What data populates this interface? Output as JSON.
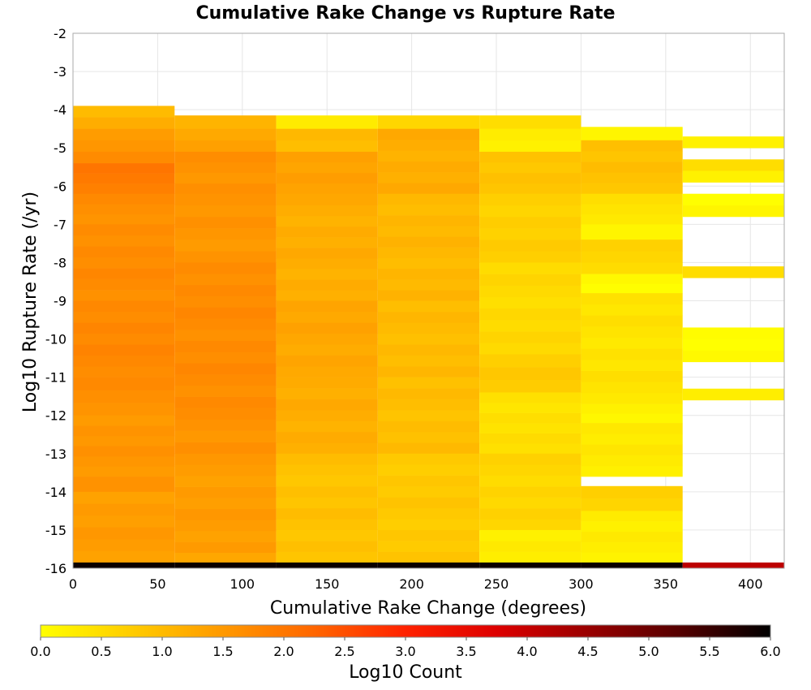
{
  "chart_data": {
    "type": "heatmap",
    "title": "Cumulative Rake Change vs Rupture Rate",
    "xlabel": "Cumulative Rake Change (degrees)",
    "ylabel": "Log10 Rupture Rate (/yr)",
    "xlim": [
      0,
      420
    ],
    "ylim": [
      -16,
      -2
    ],
    "x_ticks": [
      0,
      50,
      100,
      150,
      200,
      250,
      300,
      350,
      400
    ],
    "y_ticks": [
      -2,
      -3,
      -4,
      -5,
      -6,
      -7,
      -8,
      -9,
      -10,
      -11,
      -12,
      -13,
      -14,
      -15,
      -16
    ],
    "grid": true,
    "x_bin_edges": [
      0,
      60,
      120,
      180,
      240,
      300,
      360,
      420
    ],
    "y_bin_height": 0.29,
    "colorbar": {
      "label": "Log10 Count",
      "min": 0.0,
      "max": 6.0,
      "ticks": [
        0.0,
        0.5,
        1.0,
        1.5,
        2.0,
        2.5,
        3.0,
        3.5,
        4.0,
        4.5,
        5.0,
        5.5,
        6.0
      ],
      "colors": [
        "#ffff00",
        "#ffcc00",
        "#ff9900",
        "#ff6600",
        "#ff2200",
        "#dd0000",
        "#990000",
        "#550000",
        "#000000"
      ]
    },
    "columns": [
      {
        "x_start": 0,
        "x_end": 60,
        "cells": [
          {
            "y_start": -4.2,
            "y_end": -3.9,
            "value": 1.0
          },
          {
            "y_start": -4.5,
            "y_end": -4.2,
            "value": 1.2
          },
          {
            "y_start": -4.8,
            "y_end": -4.5,
            "value": 1.45
          },
          {
            "y_start": -5.1,
            "y_end": -4.8,
            "value": 1.55
          },
          {
            "y_start": -5.4,
            "y_end": -5.1,
            "value": 1.7
          },
          {
            "y_start": -6.2,
            "y_end": -5.4,
            "value": 1.95
          },
          {
            "y_start": -7.0,
            "y_end": -6.2,
            "value": 1.65
          },
          {
            "y_start": -9.0,
            "y_end": -7.0,
            "value": 1.7
          },
          {
            "y_start": -11.0,
            "y_end": -9.0,
            "value": 1.75
          },
          {
            "y_start": -12.0,
            "y_end": -11.0,
            "value": 1.65
          },
          {
            "y_start": -13.6,
            "y_end": -12.0,
            "value": 1.55
          },
          {
            "y_start": -14.0,
            "y_end": -13.6,
            "value": 1.6
          },
          {
            "y_start": -15.85,
            "y_end": -14.0,
            "value": 1.45
          },
          {
            "y_start": -16.0,
            "y_end": -15.85,
            "value": 5.9
          }
        ]
      },
      {
        "x_start": 60,
        "x_end": 120,
        "cells": [
          {
            "y_start": -4.5,
            "y_end": -4.15,
            "value": 1.1
          },
          {
            "y_start": -5.1,
            "y_end": -4.5,
            "value": 1.35
          },
          {
            "y_start": -6.2,
            "y_end": -5.1,
            "value": 1.6
          },
          {
            "y_start": -8.0,
            "y_end": -6.2,
            "value": 1.55
          },
          {
            "y_start": -11.8,
            "y_end": -8.0,
            "value": 1.7
          },
          {
            "y_start": -13.0,
            "y_end": -11.8,
            "value": 1.6
          },
          {
            "y_start": -15.6,
            "y_end": -13.0,
            "value": 1.45
          },
          {
            "y_start": -15.85,
            "y_end": -15.6,
            "value": 1.3
          },
          {
            "y_start": -16.0,
            "y_end": -15.85,
            "value": 5.9
          }
        ]
      },
      {
        "x_start": 120,
        "x_end": 180,
        "cells": [
          {
            "y_start": -4.5,
            "y_end": -4.15,
            "value": 0.3
          },
          {
            "y_start": -5.1,
            "y_end": -4.5,
            "value": 1.0
          },
          {
            "y_start": -6.2,
            "y_end": -5.1,
            "value": 1.4
          },
          {
            "y_start": -6.5,
            "y_end": -6.2,
            "value": 1.3
          },
          {
            "y_start": -9.0,
            "y_end": -6.5,
            "value": 1.2
          },
          {
            "y_start": -11.0,
            "y_end": -9.0,
            "value": 1.3
          },
          {
            "y_start": -13.0,
            "y_end": -11.0,
            "value": 1.2
          },
          {
            "y_start": -15.85,
            "y_end": -13.0,
            "value": 0.9
          },
          {
            "y_start": -16.0,
            "y_end": -15.85,
            "value": 5.9
          }
        ]
      },
      {
        "x_start": 180,
        "x_end": 240,
        "cells": [
          {
            "y_start": -4.5,
            "y_end": -4.15,
            "value": 0.6
          },
          {
            "y_start": -6.2,
            "y_end": -4.5,
            "value": 1.2
          },
          {
            "y_start": -9.0,
            "y_end": -6.2,
            "value": 1.05
          },
          {
            "y_start": -11.0,
            "y_end": -9.0,
            "value": 1.0
          },
          {
            "y_start": -13.0,
            "y_end": -11.0,
            "value": 0.95
          },
          {
            "y_start": -15.85,
            "y_end": -13.0,
            "value": 0.8
          },
          {
            "y_start": -16.0,
            "y_end": -15.85,
            "value": 5.9
          }
        ]
      },
      {
        "x_start": 240,
        "x_end": 300,
        "cells": [
          {
            "y_start": -4.5,
            "y_end": -4.15,
            "value": 0.5
          },
          {
            "y_start": -5.1,
            "y_end": -4.5,
            "value": 0.2
          },
          {
            "y_start": -6.2,
            "y_end": -5.1,
            "value": 0.85
          },
          {
            "y_start": -8.0,
            "y_end": -6.2,
            "value": 0.7
          },
          {
            "y_start": -10.4,
            "y_end": -8.0,
            "value": 0.55
          },
          {
            "y_start": -11.4,
            "y_end": -10.4,
            "value": 0.75
          },
          {
            "y_start": -13.0,
            "y_end": -11.4,
            "value": 0.45
          },
          {
            "y_start": -15.0,
            "y_end": -13.0,
            "value": 0.6
          },
          {
            "y_start": -15.85,
            "y_end": -15.0,
            "value": 0.25
          },
          {
            "y_start": -16.0,
            "y_end": -15.85,
            "value": 5.9
          }
        ]
      },
      {
        "x_start": 300,
        "x_end": 360,
        "cells": [
          {
            "y_start": -4.8,
            "y_end": -4.45,
            "value": 0.15
          },
          {
            "y_start": -6.2,
            "y_end": -4.8,
            "value": 0.9
          },
          {
            "y_start": -7.0,
            "y_end": -6.2,
            "value": 0.4
          },
          {
            "y_start": -7.4,
            "y_end": -7.0,
            "value": 0.15
          },
          {
            "y_start": -8.3,
            "y_end": -7.4,
            "value": 0.6
          },
          {
            "y_start": -8.8,
            "y_end": -8.3,
            "value": 0.1
          },
          {
            "y_start": -11.7,
            "y_end": -8.8,
            "value": 0.4
          },
          {
            "y_start": -12.2,
            "y_end": -11.7,
            "value": 0.2
          },
          {
            "y_start": -13.6,
            "y_end": -12.2,
            "value": 0.3
          },
          {
            "y_start": -14.5,
            "y_end": -13.85,
            "value": 0.7
          },
          {
            "y_start": -15.85,
            "y_end": -14.5,
            "value": 0.25
          },
          {
            "y_start": -16.0,
            "y_end": -15.85,
            "value": 5.9
          }
        ]
      },
      {
        "x_start": 360,
        "x_end": 420,
        "cells": [
          {
            "y_start": -5.0,
            "y_end": -4.7,
            "value": 0.2
          },
          {
            "y_start": -5.6,
            "y_end": -5.3,
            "value": 0.5
          },
          {
            "y_start": -5.9,
            "y_end": -5.6,
            "value": 0.2
          },
          {
            "y_start": -6.8,
            "y_end": -6.2,
            "value": 0.1
          },
          {
            "y_start": -8.4,
            "y_end": -8.1,
            "value": 0.5
          },
          {
            "y_start": -10.6,
            "y_end": -9.7,
            "value": 0.05
          },
          {
            "y_start": -11.6,
            "y_end": -11.3,
            "value": 0.25
          },
          {
            "y_start": -16.0,
            "y_end": -15.85,
            "value": 4.1
          }
        ]
      }
    ]
  }
}
